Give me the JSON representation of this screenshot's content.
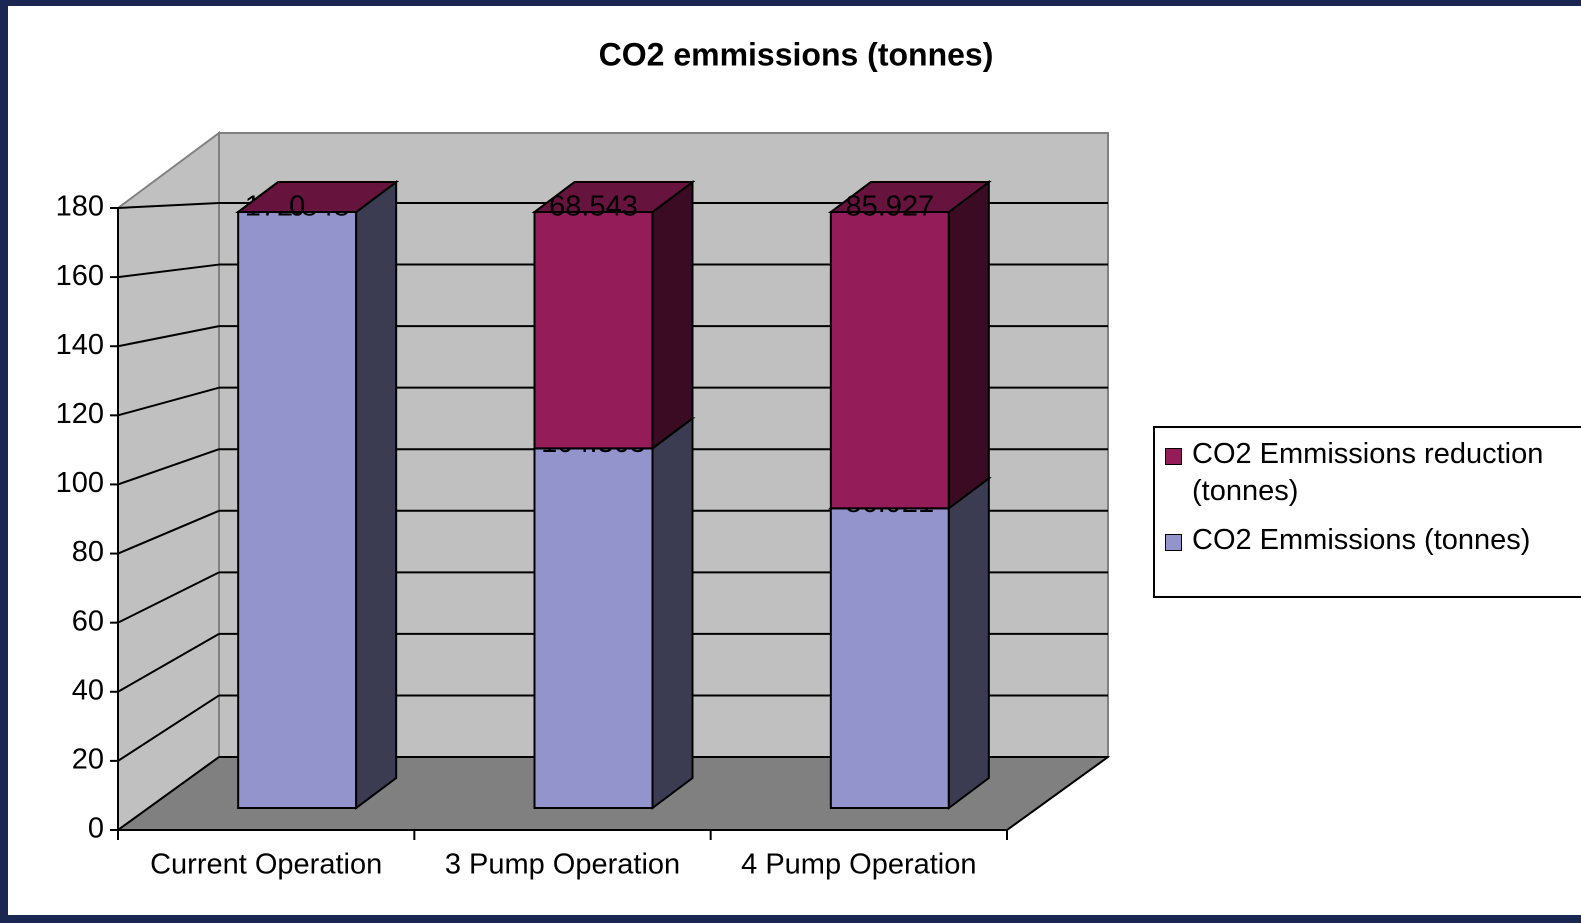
{
  "chart_data": {
    "type": "bar3d_stacked",
    "title": "CO2 emmissions (tonnes)",
    "categories": [
      "Current Operation",
      "3 Pump Operation",
      "4 Pump Operation"
    ],
    "series": [
      {
        "name": "CO2 Emmissions (tonnes)",
        "color": "#9494cc",
        "values": [
          172.848,
          104.305,
          86.921
        ]
      },
      {
        "name": "CO2 Emmissions reduction (tonnes)",
        "color": "#931c59",
        "values": [
          0,
          68.543,
          85.927
        ]
      }
    ],
    "ylim": [
      0,
      180
    ],
    "yticks": [
      0,
      20,
      40,
      60,
      80,
      100,
      120,
      140,
      160,
      180
    ],
    "grid": true,
    "legend": "right"
  }
}
